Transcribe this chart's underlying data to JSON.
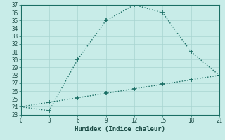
{
  "xlabel": "Humidex (Indice chaleur)",
  "ylabel": "",
  "bg_color": "#c8ece8",
  "grid_color": "#a8d4d0",
  "line_color": "#1a6e64",
  "x_main": [
    0,
    3,
    6,
    9,
    12,
    15,
    18,
    21
  ],
  "y_main": [
    24,
    23.5,
    30,
    35,
    37,
    36,
    31,
    28
  ],
  "x_secondary": [
    0,
    3,
    6,
    9,
    12,
    15,
    18,
    21
  ],
  "y_secondary": [
    24,
    24.57,
    25.14,
    25.71,
    26.29,
    26.86,
    27.43,
    28
  ],
  "xlim": [
    0,
    21
  ],
  "ylim": [
    23,
    37
  ],
  "xticks": [
    0,
    3,
    6,
    9,
    12,
    15,
    18,
    21
  ],
  "yticks": [
    23,
    24,
    25,
    26,
    27,
    28,
    29,
    30,
    31,
    32,
    33,
    34,
    35,
    36,
    37
  ],
  "marker": "+",
  "marker_size": 5,
  "linewidth": 1.0
}
